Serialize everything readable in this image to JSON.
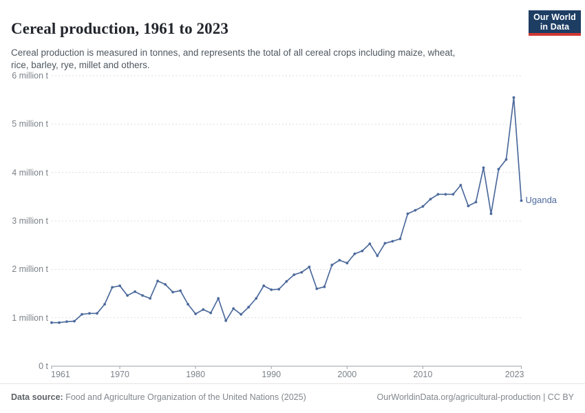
{
  "header": {
    "title": "Cereal production, 1961 to 2023",
    "subtitle_lines": [
      "Cereal production is measured in tonnes, and represents the total of all cereal crops including maize, wheat,",
      "rice, barley, rye, millet and others."
    ]
  },
  "logo": {
    "lines": [
      "Our World",
      "in Data"
    ],
    "bg_color": "#1d3d63",
    "accent_color": "#d13832"
  },
  "footer": {
    "source_label": "Data source:",
    "source_text": "Food and Agriculture Organization of the United Nations (2025)",
    "link_text": "OurWorldinData.org/agricultural-production | CC BY"
  },
  "chart_data": {
    "type": "line",
    "title": "Cereal production, 1961 to 2023",
    "entity": "Uganda",
    "unit": "million tonnes",
    "x_domain": [
      1961,
      2023
    ],
    "y_domain": [
      0,
      6
    ],
    "grid": true,
    "legend": "end-of-line-label",
    "line_color": "#4C6A9C",
    "x_ticks": [
      1961,
      1970,
      1980,
      1990,
      2000,
      2010,
      2023
    ],
    "y_ticks": [
      {
        "v": 0,
        "label": "0 t"
      },
      {
        "v": 1,
        "label": "1 million t"
      },
      {
        "v": 2,
        "label": "2 million t"
      },
      {
        "v": 3,
        "label": "3 million t"
      },
      {
        "v": 4,
        "label": "4 million t"
      },
      {
        "v": 5,
        "label": "5 million t"
      },
      {
        "v": 6,
        "label": "6 million t"
      }
    ],
    "x": [
      1961,
      1962,
      1963,
      1964,
      1965,
      1966,
      1967,
      1968,
      1969,
      1970,
      1971,
      1972,
      1973,
      1974,
      1975,
      1976,
      1977,
      1978,
      1979,
      1980,
      1981,
      1982,
      1983,
      1984,
      1985,
      1986,
      1987,
      1988,
      1989,
      1990,
      1991,
      1992,
      1993,
      1994,
      1995,
      1996,
      1997,
      1998,
      1999,
      2000,
      2001,
      2002,
      2003,
      2004,
      2005,
      2006,
      2007,
      2008,
      2009,
      2010,
      2011,
      2012,
      2013,
      2014,
      2015,
      2016,
      2017,
      2018,
      2019,
      2020,
      2021,
      2022,
      2023
    ],
    "values": [
      0.9,
      0.9,
      0.92,
      0.93,
      1.07,
      1.09,
      1.09,
      1.28,
      1.63,
      1.66,
      1.46,
      1.54,
      1.46,
      1.4,
      1.76,
      1.69,
      1.53,
      1.56,
      1.28,
      1.08,
      1.17,
      1.1,
      1.4,
      0.94,
      1.19,
      1.07,
      1.22,
      1.4,
      1.66,
      1.58,
      1.59,
      1.75,
      1.89,
      1.94,
      2.05,
      1.6,
      1.64,
      2.09,
      2.19,
      2.13,
      2.32,
      2.38,
      2.53,
      2.28,
      2.54,
      2.58,
      2.63,
      3.15,
      3.22,
      3.3,
      3.45,
      3.55,
      3.55,
      3.55,
      3.74,
      3.31,
      3.39,
      4.1,
      3.15,
      4.07,
      4.27,
      5.55,
      3.42
    ]
  }
}
